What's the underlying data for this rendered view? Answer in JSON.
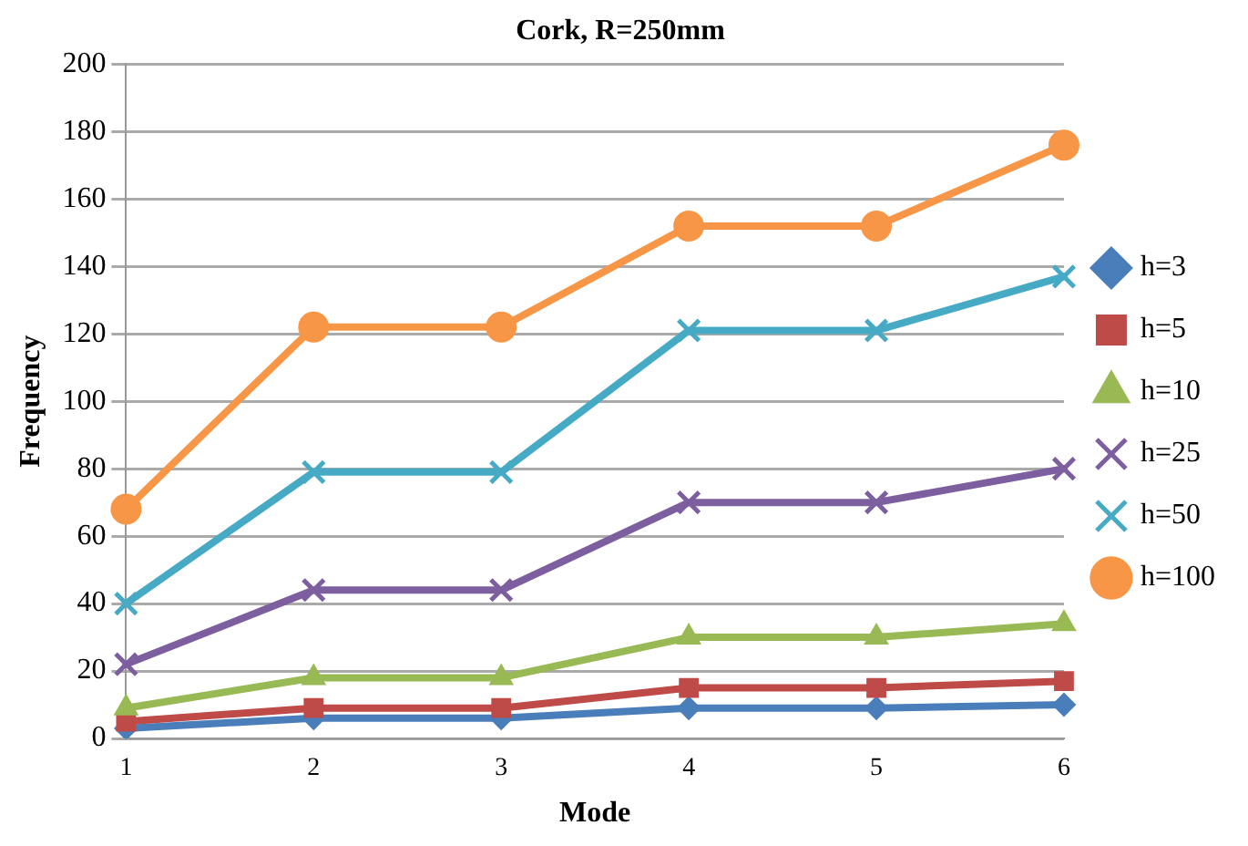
{
  "chart_data": {
    "type": "line",
    "title": "Cork, R=250mm",
    "xlabel": "Mode",
    "ylabel": "Frequency",
    "categories": [
      "1",
      "2",
      "3",
      "4",
      "5",
      "6"
    ],
    "ylim": [
      0,
      200
    ],
    "yticks": [
      0,
      20,
      40,
      60,
      80,
      100,
      120,
      140,
      160,
      180,
      200
    ],
    "grid": "y",
    "legend": "right",
    "series": [
      {
        "name": "h=3",
        "color": "#4a7ebb",
        "marker": "diamond",
        "values": [
          3,
          6,
          6,
          9,
          9,
          10
        ]
      },
      {
        "name": "h=5",
        "color": "#be4b48",
        "marker": "square",
        "values": [
          5,
          9,
          9,
          15,
          15,
          17
        ]
      },
      {
        "name": "h=10",
        "color": "#98b954",
        "marker": "triangle",
        "values": [
          9,
          18,
          18,
          30,
          30,
          34
        ]
      },
      {
        "name": "h=25",
        "color": "#7d5fa0",
        "marker": "cross",
        "values": [
          22,
          44,
          44,
          70,
          70,
          80
        ]
      },
      {
        "name": "h=50",
        "color": "#46aac5",
        "marker": "cross",
        "values": [
          40,
          79,
          79,
          121,
          121,
          137
        ]
      },
      {
        "name": "h=100",
        "color": "#f79646",
        "marker": "circle",
        "values": [
          68,
          122,
          122,
          152,
          152,
          176
        ]
      }
    ]
  }
}
